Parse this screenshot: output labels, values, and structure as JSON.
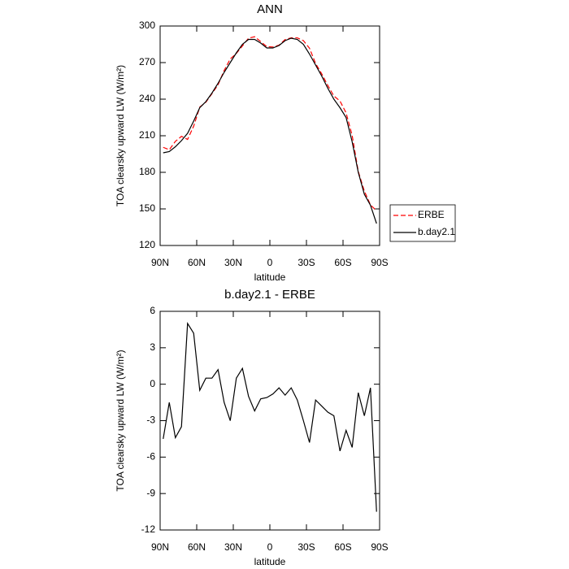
{
  "chart_data": [
    {
      "type": "line",
      "title": "ANN",
      "xlabel": "latitude",
      "ylabel": "TOA clearsky upward LW (W/m²)",
      "x": [
        87.5,
        82.5,
        77.5,
        72.5,
        67.5,
        62.5,
        57.5,
        52.5,
        47.5,
        42.5,
        37.5,
        32.5,
        27.5,
        22.5,
        17.5,
        12.5,
        7.5,
        2.5,
        -2.5,
        -7.5,
        -12.5,
        -17.5,
        -22.5,
        -27.5,
        -32.5,
        -37.5,
        -42.5,
        -47.5,
        -52.5,
        -57.5,
        -62.5,
        -67.5,
        -72.5,
        -77.5,
        -82.5,
        -87.5
      ],
      "series": [
        {
          "name": "ERBE",
          "color": "#ff0000",
          "style": "dashed",
          "values": [
            200.5,
            198.5,
            205.4,
            209.5,
            207,
            217.8,
            233.5,
            237.5,
            244.5,
            251.8,
            263.5,
            273,
            277.5,
            283.7,
            290,
            291.2,
            287.2,
            283.1,
            282.8,
            284.3,
            288.9,
            290.3,
            290.3,
            288,
            281.8,
            269.3,
            260.8,
            251.3,
            242.6,
            238.5,
            228.8,
            210.2,
            180.7,
            164.6,
            153.3,
            148.5
          ]
        },
        {
          "name": "b.day2.1",
          "color": "#000000",
          "style": "solid",
          "values": [
            196,
            197,
            201,
            206,
            212,
            222,
            233,
            238,
            245,
            253,
            262,
            270,
            278,
            285,
            289,
            289,
            286,
            282,
            282,
            284,
            288,
            290,
            289,
            285,
            277,
            268,
            259,
            249,
            240,
            233,
            225,
            205,
            180,
            162,
            153,
            138
          ]
        }
      ],
      "xlim": [
        90,
        -90
      ],
      "xticks": [
        {
          "value": 90,
          "label": "90N"
        },
        {
          "value": 60,
          "label": "60N"
        },
        {
          "value": 30,
          "label": "30N"
        },
        0,
        {
          "value": -30,
          "label": "30S"
        },
        {
          "value": -60,
          "label": "60S"
        },
        {
          "value": -90,
          "label": "90S"
        }
      ],
      "ylim": [
        120,
        300
      ],
      "yticks": [
        120,
        150,
        180,
        210,
        240,
        270,
        300
      ],
      "legend": "right"
    },
    {
      "type": "line",
      "title": "b.day2.1 - ERBE",
      "xlabel": "latitude",
      "ylabel": "TOA clearsky upward LW (W/m²)",
      "x": [
        87.5,
        82.5,
        77.5,
        72.5,
        67.5,
        62.5,
        57.5,
        52.5,
        47.5,
        42.5,
        37.5,
        32.5,
        27.5,
        22.5,
        17.5,
        12.5,
        7.5,
        2.5,
        -2.5,
        -7.5,
        -12.5,
        -17.5,
        -22.5,
        -27.5,
        -32.5,
        -37.5,
        -42.5,
        -47.5,
        -52.5,
        -57.5,
        -62.5,
        -67.5,
        -72.5,
        -77.5,
        -82.5,
        -87.5
      ],
      "series": [
        {
          "color": "#000000",
          "style": "solid",
          "values": [
            -4.5,
            -1.5,
            -4.4,
            -3.5,
            5.0,
            4.2,
            -0.5,
            0.5,
            0.5,
            1.2,
            -1.5,
            -3.0,
            0.5,
            1.3,
            -1.0,
            -2.2,
            -1.2,
            -1.1,
            -0.8,
            -0.3,
            -0.9,
            -0.3,
            -1.3,
            -3.0,
            -4.8,
            -1.3,
            -1.8,
            -2.3,
            -2.6,
            -5.5,
            -3.8,
            -5.2,
            -0.7,
            -2.6,
            -0.3,
            -10.5
          ]
        }
      ],
      "xlim": [
        90,
        -90
      ],
      "xticks": [
        {
          "value": 90,
          "label": "90N"
        },
        {
          "value": 60,
          "label": "60N"
        },
        {
          "value": 30,
          "label": "30N"
        },
        0,
        {
          "value": -30,
          "label": "30S"
        },
        {
          "value": -60,
          "label": "60S"
        },
        {
          "value": -90,
          "label": "90S"
        }
      ],
      "ylim": [
        -12,
        6
      ],
      "yticks": [
        -12,
        -9,
        -6,
        -3,
        0,
        3,
        6
      ]
    }
  ]
}
